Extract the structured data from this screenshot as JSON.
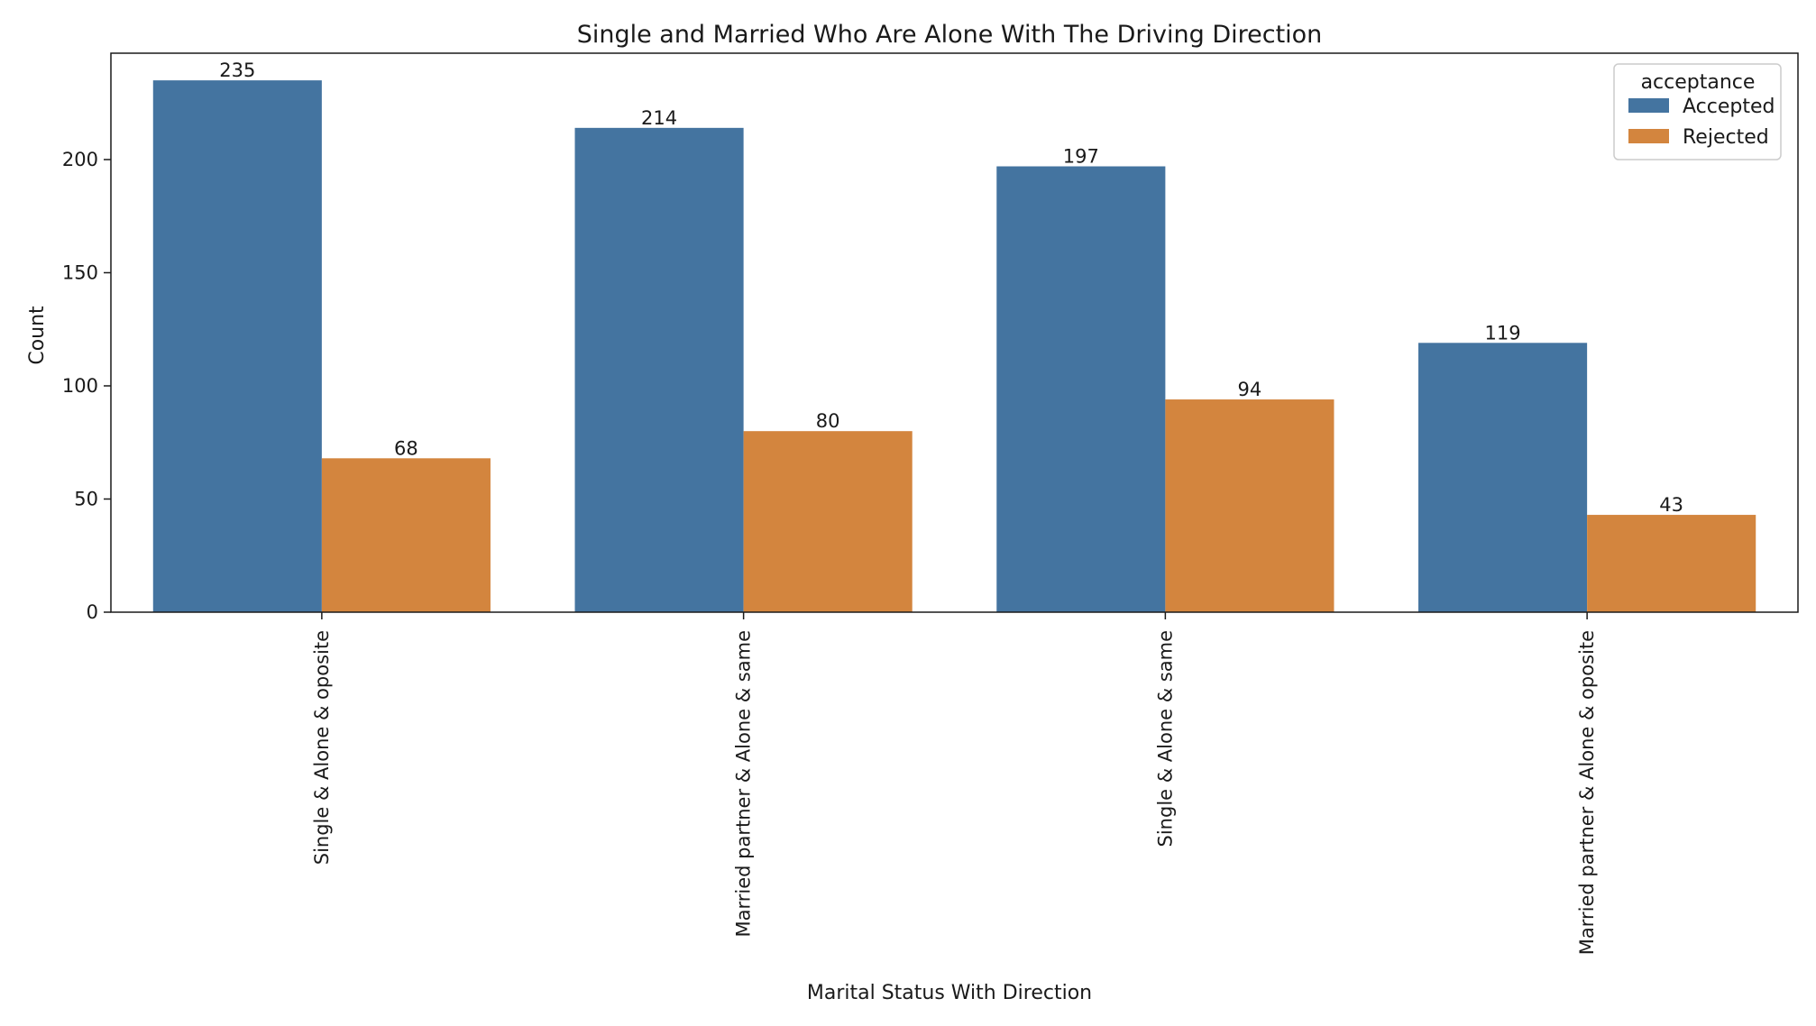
{
  "chart_data": {
    "type": "bar",
    "title": "Single and Married Who Are Alone With The Driving Direction",
    "xlabel": "Marital Status With Direction",
    "ylabel": "Count",
    "ylim": [
      0,
      247
    ],
    "yticks": [
      0,
      50,
      100,
      150,
      200
    ],
    "grid": false,
    "categories": [
      "Single & Alone & oposite",
      "Married partner & Alone & same",
      "Single & Alone & same",
      "Married partner & Alone & oposite"
    ],
    "series": [
      {
        "name": "Accepted",
        "color": "#4474a0",
        "values": [
          235,
          214,
          197,
          119
        ]
      },
      {
        "name": "Rejected",
        "color": "#d3853e",
        "values": [
          68,
          80,
          94,
          43
        ]
      }
    ],
    "legend": {
      "title": "acceptance",
      "placement": "top-right"
    }
  }
}
